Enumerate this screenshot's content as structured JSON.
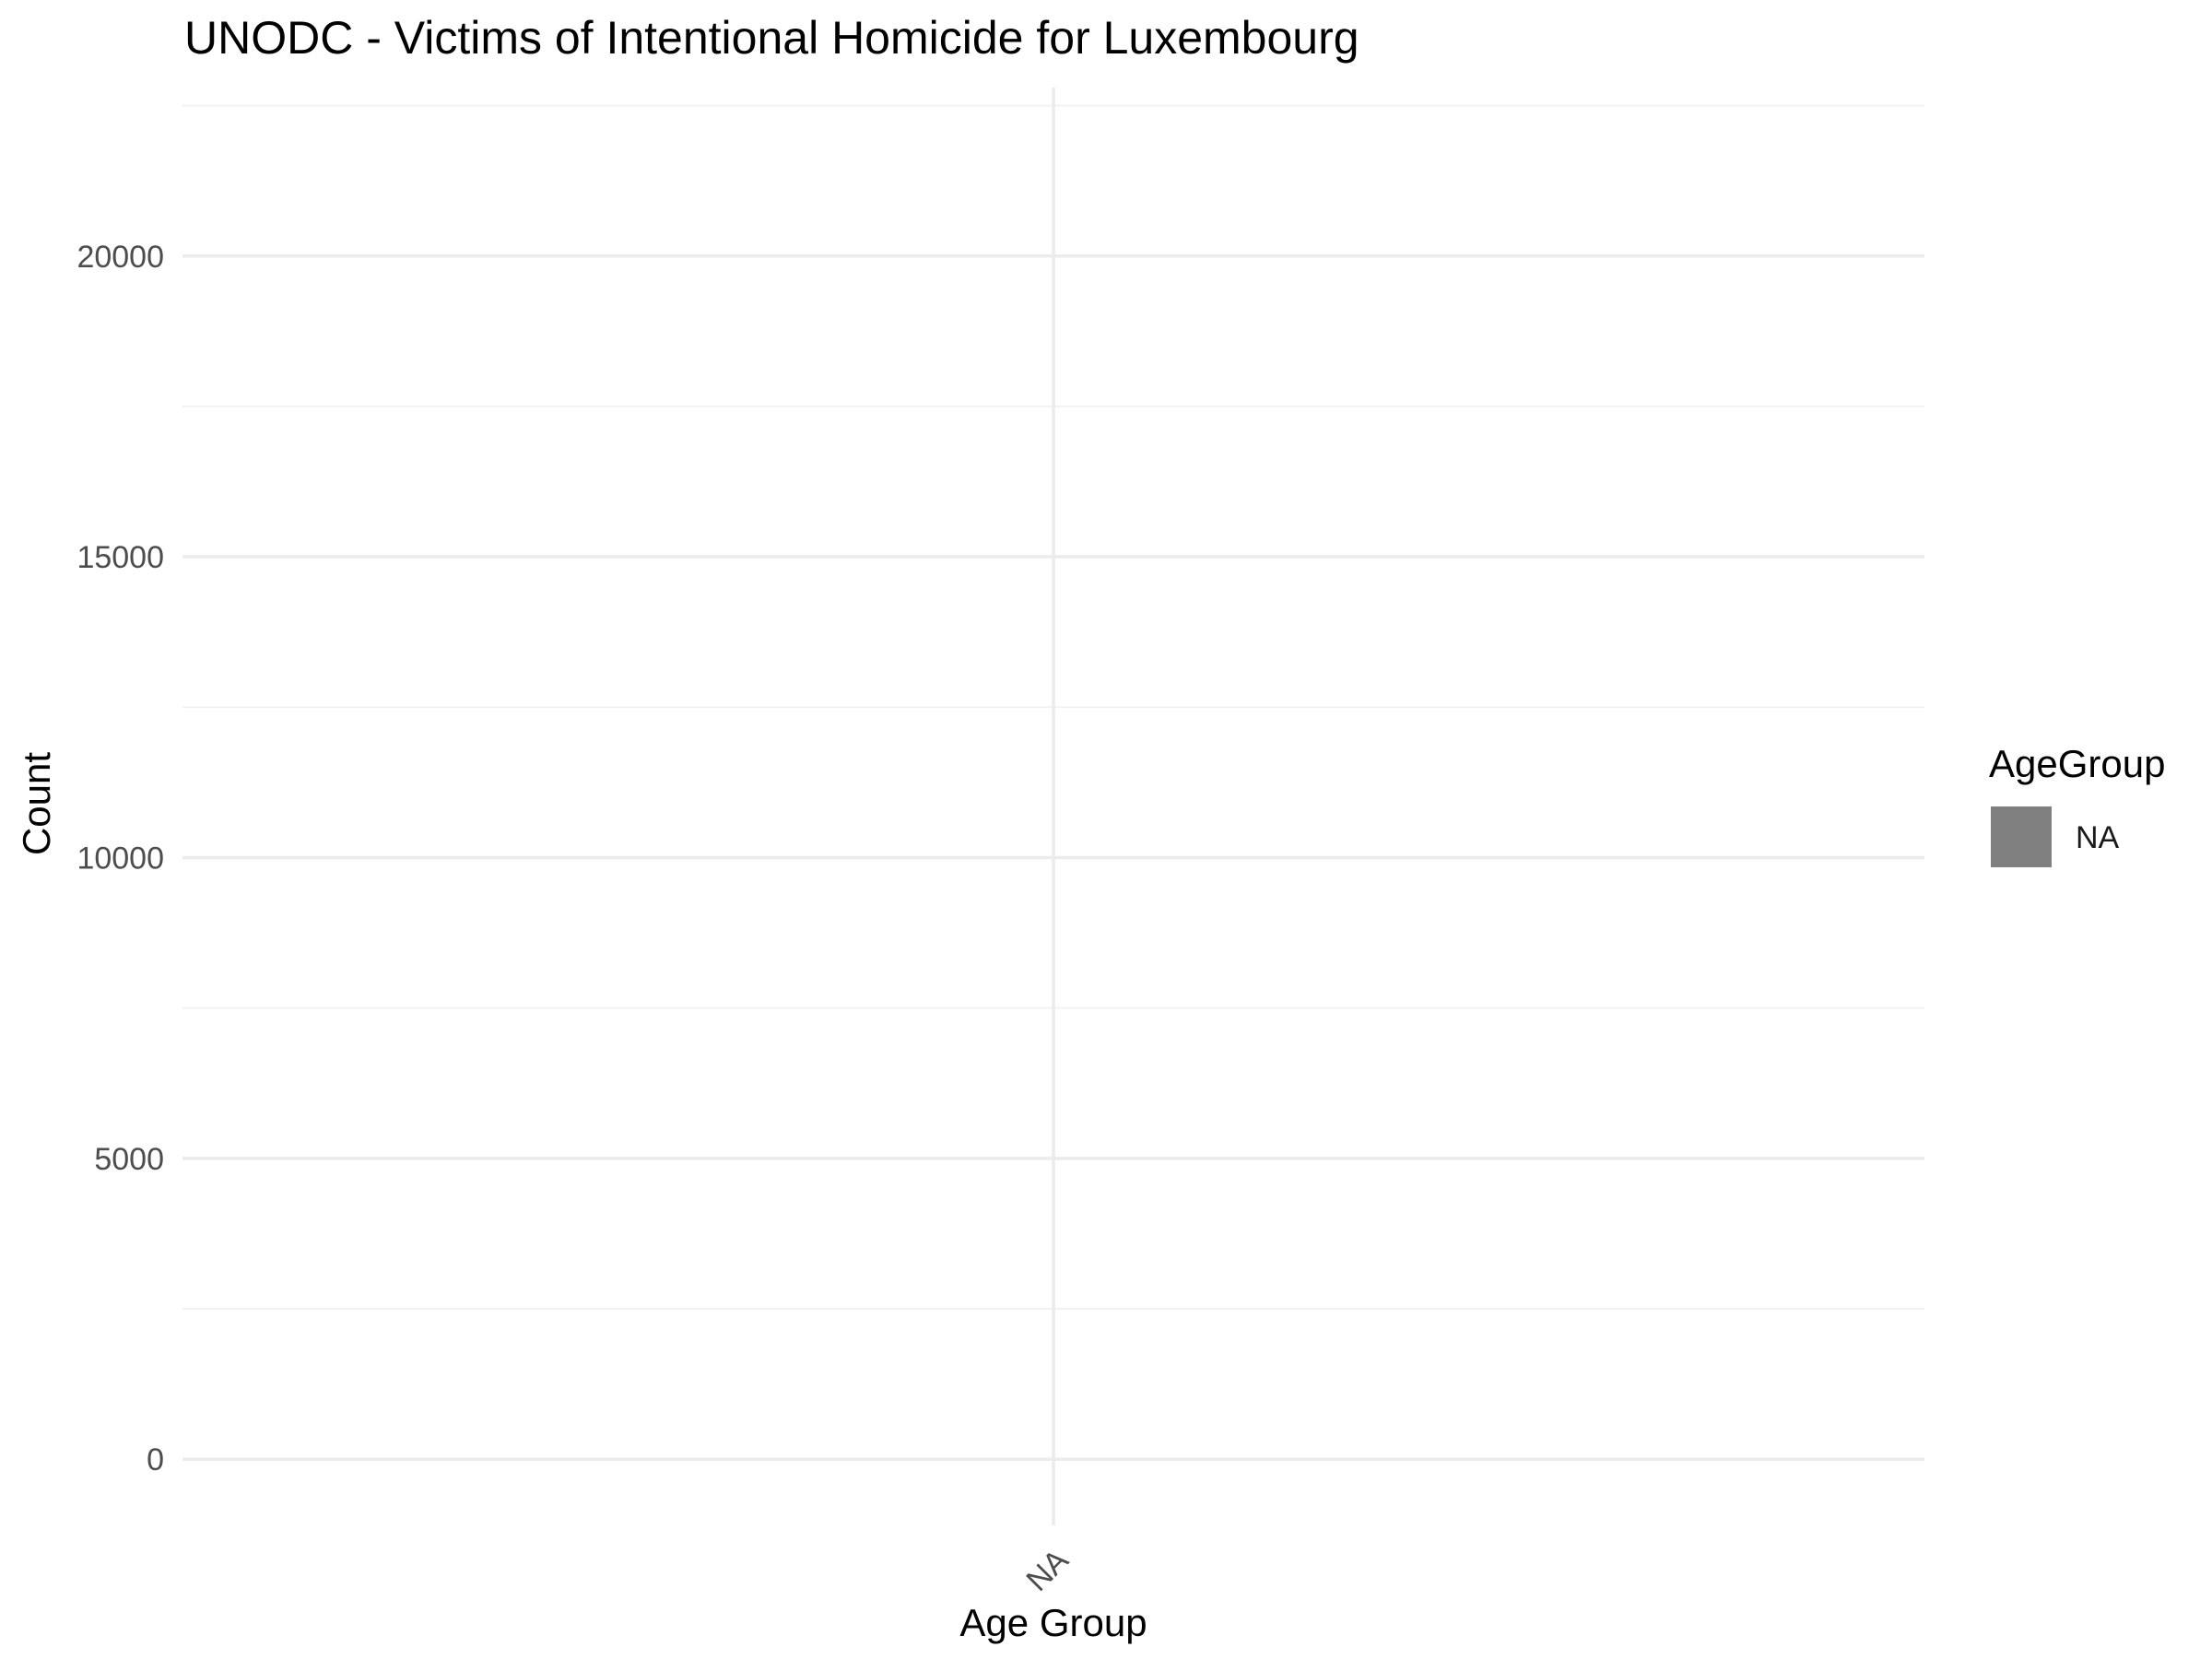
{
  "chart_data": {
    "type": "bar",
    "title": "UNODC - Victims of Intentional Homicide for Luxembourg",
    "xlabel": "Age Group",
    "ylabel": "Count",
    "categories": [
      "NA"
    ],
    "series": [
      {
        "name": "NA",
        "values": [
          null
        ],
        "color": "#808080"
      }
    ],
    "ylim": [
      -1100,
      22800
    ],
    "y_ticks": [
      0,
      5000,
      10000,
      15000,
      20000
    ],
    "y_tick_labels": [
      "0",
      "5000",
      "10000",
      "15000",
      "20000"
    ],
    "y_minor_ticks": [
      2500,
      7500,
      12500,
      17500,
      22500
    ],
    "x_tick_rotation_deg": 45,
    "grid": true,
    "legend": {
      "title": "AgeGroup",
      "position": "right",
      "entries": [
        {
          "label": "NA",
          "color": "#808080"
        }
      ]
    },
    "colors": {
      "grid_major": "#ebebeb",
      "grid_minor": "#f2f2f2",
      "tick_text": "#4d4d4d"
    }
  }
}
